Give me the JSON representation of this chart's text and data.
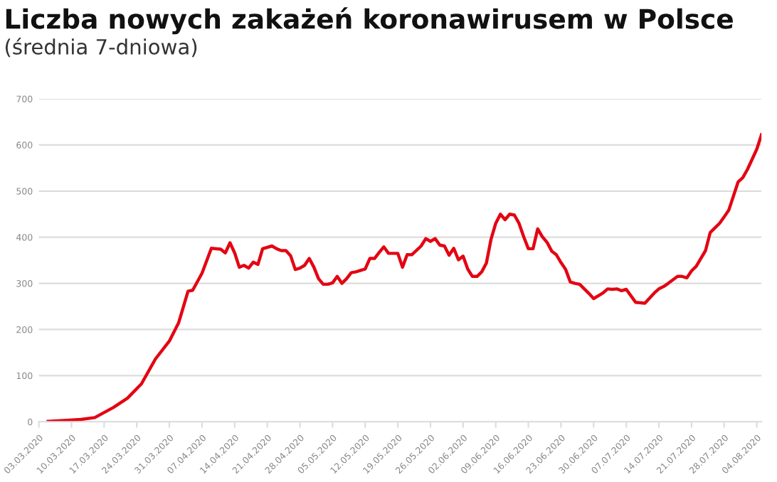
{
  "chart_data": {
    "type": "line",
    "title": "Liczba nowych zakażeń koronawirusem w Polsce",
    "subtitle": "(średnia 7-dniowa)",
    "x": [
      "2020-03-05",
      "2020-03-09",
      "2020-03-12",
      "2020-03-15",
      "2020-03-19",
      "2020-03-22",
      "2020-03-25",
      "2020-03-28",
      "2020-03-31",
      "2020-04-02",
      "2020-04-04",
      "2020-04-05",
      "2020-04-07",
      "2020-04-09",
      "2020-04-11",
      "2020-04-12",
      "2020-04-13",
      "2020-04-14",
      "2020-04-15",
      "2020-04-16",
      "2020-04-17",
      "2020-04-18",
      "2020-04-19",
      "2020-04-20",
      "2020-04-22",
      "2020-04-23",
      "2020-04-24",
      "2020-04-25",
      "2020-04-26",
      "2020-04-27",
      "2020-04-28",
      "2020-04-29",
      "2020-04-30",
      "2020-05-01",
      "2020-05-02",
      "2020-05-03",
      "2020-05-04",
      "2020-05-05",
      "2020-05-06",
      "2020-05-07",
      "2020-05-08",
      "2020-05-09",
      "2020-05-10",
      "2020-05-12",
      "2020-05-13",
      "2020-05-14",
      "2020-05-15",
      "2020-05-16",
      "2020-05-17",
      "2020-05-19",
      "2020-05-20",
      "2020-05-21",
      "2020-05-22",
      "2020-05-24",
      "2020-05-25",
      "2020-05-26",
      "2020-05-27",
      "2020-05-28",
      "2020-05-29",
      "2020-05-30",
      "2020-05-31",
      "2020-06-01",
      "2020-06-02",
      "2020-06-03",
      "2020-06-04",
      "2020-06-05",
      "2020-06-06",
      "2020-06-07",
      "2020-06-08",
      "2020-06-09",
      "2020-06-10",
      "2020-06-11",
      "2020-06-12",
      "2020-06-13",
      "2020-06-14",
      "2020-06-15",
      "2020-06-16",
      "2020-06-17",
      "2020-06-18",
      "2020-06-19",
      "2020-06-20",
      "2020-06-21",
      "2020-06-22",
      "2020-06-23",
      "2020-06-24",
      "2020-06-25",
      "2020-06-26",
      "2020-06-27",
      "2020-06-29",
      "2020-06-30",
      "2020-07-02",
      "2020-07-03",
      "2020-07-04",
      "2020-07-05",
      "2020-07-06",
      "2020-07-07",
      "2020-07-09",
      "2020-07-11",
      "2020-07-13",
      "2020-07-14",
      "2020-07-15",
      "2020-07-16",
      "2020-07-18",
      "2020-07-19",
      "2020-07-20",
      "2020-07-21",
      "2020-07-22",
      "2020-07-24",
      "2020-07-25",
      "2020-07-26",
      "2020-07-27",
      "2020-07-28",
      "2020-07-29",
      "2020-07-31",
      "2020-08-01",
      "2020-08-02",
      "2020-08-04",
      "2020-08-05"
    ],
    "series": [
      {
        "color": "#e30613",
        "values": [
          1,
          3,
          5,
          9,
          31,
          51,
          82,
          136,
          175,
          215,
          283,
          285,
          322,
          376,
          374,
          366,
          388,
          366,
          335,
          339,
          333,
          346,
          341,
          375,
          381,
          375,
          371,
          371,
          360,
          330,
          333,
          339,
          354,
          335,
          310,
          298,
          298,
          301,
          315,
          300,
          310,
          323,
          325,
          331,
          354,
          354,
          367,
          379,
          365,
          365,
          335,
          362,
          362,
          381,
          397,
          391,
          397,
          383,
          381,
          361,
          376,
          351,
          359,
          331,
          315,
          315,
          325,
          344,
          396,
          430,
          450,
          438,
          450,
          448,
          430,
          401,
          375,
          375,
          418,
          401,
          389,
          370,
          362,
          345,
          330,
          303,
          300,
          298,
          278,
          267,
          279,
          288,
          287,
          288,
          284,
          287,
          259,
          257,
          279,
          288,
          293,
          300,
          315,
          315,
          312,
          327,
          337,
          371,
          410,
          420,
          430,
          444,
          459,
          520,
          529,
          547,
          591,
          622
        ]
      }
    ],
    "xlim": [
      "2020-03-03",
      "2020-08-05"
    ],
    "xticks": [
      {
        "value": "2020-03-03",
        "label": "03.03.2020"
      },
      {
        "value": "2020-03-10",
        "label": "10.03.2020"
      },
      {
        "value": "2020-03-17",
        "label": "17.03.2020"
      },
      {
        "value": "2020-03-24",
        "label": "24.03.2020"
      },
      {
        "value": "2020-03-31",
        "label": "31.03.2020"
      },
      {
        "value": "2020-04-07",
        "label": "07.04.2020"
      },
      {
        "value": "2020-04-14",
        "label": "14.04.2020"
      },
      {
        "value": "2020-04-21",
        "label": "21.04.2020"
      },
      {
        "value": "2020-04-28",
        "label": "28.04.2020"
      },
      {
        "value": "2020-05-05",
        "label": "05.05.2020"
      },
      {
        "value": "2020-05-12",
        "label": "12.05.2020"
      },
      {
        "value": "2020-05-19",
        "label": "19.05.2020"
      },
      {
        "value": "2020-05-26",
        "label": "26.05.2020"
      },
      {
        "value": "2020-06-02",
        "label": "02.06.2020"
      },
      {
        "value": "2020-06-09",
        "label": "09.06.2020"
      },
      {
        "value": "2020-06-16",
        "label": "16.06.2020"
      },
      {
        "value": "2020-06-23",
        "label": "23.06.2020"
      },
      {
        "value": "2020-06-30",
        "label": "30.06.2020"
      },
      {
        "value": "2020-07-07",
        "label": "07.07.2020"
      },
      {
        "value": "2020-07-14",
        "label": "14.07.2020"
      },
      {
        "value": "2020-07-21",
        "label": "21.07.2020"
      },
      {
        "value": "2020-07-28",
        "label": "28.07.2020"
      },
      {
        "value": "2020-08-04",
        "label": "04.08.2020"
      }
    ],
    "ylim": [
      0,
      700
    ],
    "yticks": [
      0,
      100,
      200,
      300,
      400,
      500,
      600,
      700
    ],
    "grid": "y",
    "legend": false
  }
}
